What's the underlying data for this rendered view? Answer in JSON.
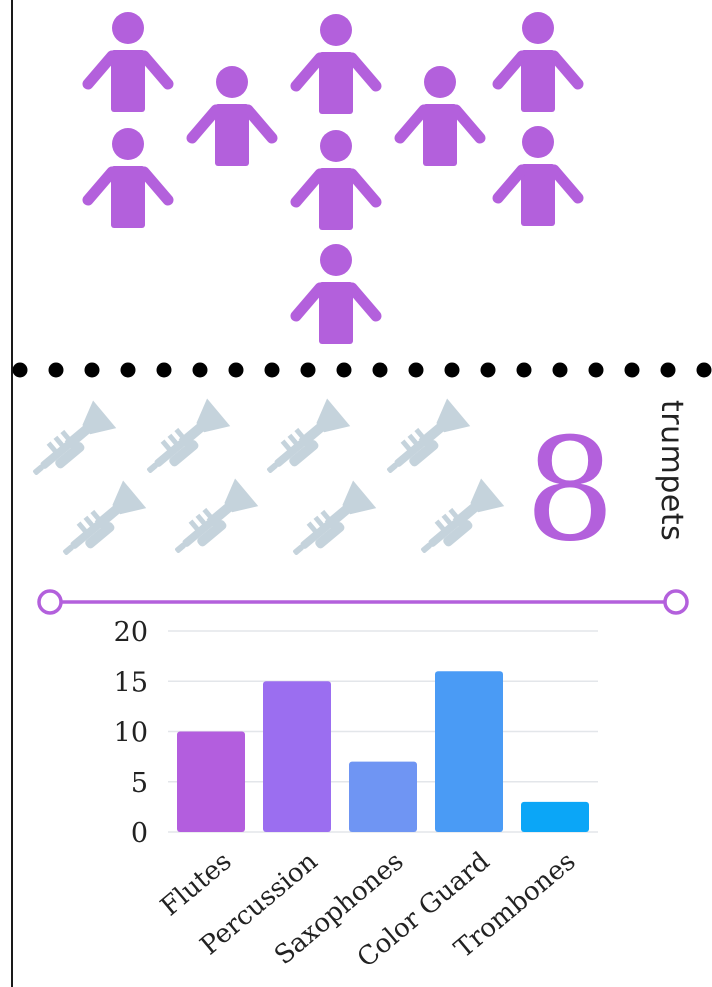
{
  "people": {
    "icon": "person-icon",
    "count": 9,
    "color": "#b360dc"
  },
  "divider": {
    "color": "#000000"
  },
  "trumpets": {
    "icon": "trumpet-icon",
    "count": 8,
    "icon_color": "#c5d3dc",
    "number_text": "8",
    "label": "trumpets",
    "number_color": "#b360dc"
  },
  "timeline": {
    "color": "#b360dc"
  },
  "chart_data": {
    "type": "bar",
    "categories": [
      "Flutes",
      "Percussion",
      "Saxophones",
      "Color Guard",
      "Trombones"
    ],
    "values": [
      10,
      15,
      7,
      16,
      3
    ],
    "colors": [
      "#b35ede",
      "#9b6ef0",
      "#6f95f3",
      "#4a9bf5",
      "#0ba6f7"
    ],
    "ylim": [
      0,
      20
    ],
    "yticks": [
      0,
      5,
      10,
      15,
      20
    ],
    "grid": true,
    "title": "",
    "xlabel": "",
    "ylabel": ""
  }
}
